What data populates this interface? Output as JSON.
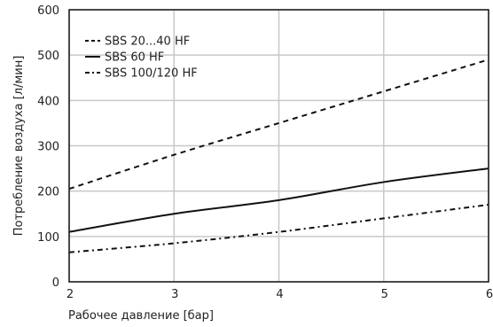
{
  "chart_data": {
    "type": "line",
    "title": "",
    "xlabel": "Рабочее давление [бар]",
    "ylabel": "Потребление воздуха [л/мин]",
    "xlim": [
      2,
      6
    ],
    "ylim": [
      0,
      600
    ],
    "xticks": [
      "2",
      "3",
      "4",
      "5",
      "6"
    ],
    "yticks": [
      "0",
      "100",
      "200",
      "300",
      "400",
      "500",
      "600"
    ],
    "grid": true,
    "legend_position": "top-left",
    "series": [
      {
        "name": "SBS 20...40 HF",
        "style": "dashed",
        "x": [
          2,
          3,
          4,
          5,
          6
        ],
        "values": [
          205,
          280,
          350,
          420,
          490
        ]
      },
      {
        "name": "SBS 60 HF",
        "style": "solid",
        "x": [
          2,
          3,
          4,
          5,
          6
        ],
        "values": [
          110,
          150,
          180,
          220,
          250
        ]
      },
      {
        "name": "SBS 100/120 HF",
        "style": "dashdot",
        "x": [
          2,
          3,
          4,
          5,
          6
        ],
        "values": [
          65,
          85,
          110,
          140,
          170
        ]
      }
    ]
  }
}
